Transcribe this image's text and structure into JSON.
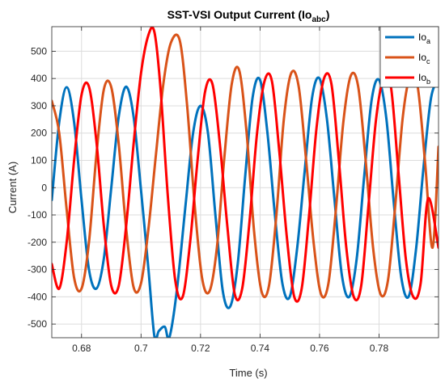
{
  "chart_data": {
    "type": "line",
    "title": {
      "main": "SST-VSI Output Current (Io",
      "sub": "abc",
      "close": ")"
    },
    "xlabel": "Time (s)",
    "ylabel": "Current (A)",
    "xlim": [
      0.67,
      0.8
    ],
    "ylim": [
      -550,
      590
    ],
    "xticks": [
      0.68,
      0.7,
      0.72,
      0.74,
      0.76,
      0.78
    ],
    "xtick_labels": [
      "0.68",
      "0.7",
      "0.72",
      "0.74",
      "0.76",
      "0.78"
    ],
    "yticks": [
      -500,
      -400,
      -300,
      -200,
      -100,
      0,
      100,
      200,
      300,
      400,
      500
    ],
    "ytick_labels": [
      "-500",
      "-400",
      "-300",
      "-200",
      "-100",
      "0",
      "100",
      "200",
      "300",
      "400",
      "500"
    ],
    "grid": true,
    "legend_position": "top-right",
    "series": [
      {
        "name": "Io",
        "sub": "a",
        "color": "#0072BD",
        "x": [
          0.67,
          0.6725,
          0.675,
          0.6775,
          0.68,
          0.6825,
          0.685,
          0.6875,
          0.69,
          0.6925,
          0.695,
          0.6975,
          0.7,
          0.7025,
          0.7045,
          0.706,
          0.708,
          0.7095,
          0.712,
          0.715,
          0.7175,
          0.72,
          0.7225,
          0.725,
          0.7275,
          0.73,
          0.7325,
          0.735,
          0.7375,
          0.74,
          0.7425,
          0.745,
          0.7475,
          0.75,
          0.7525,
          0.755,
          0.7575,
          0.76,
          0.7625,
          0.765,
          0.7675,
          0.77,
          0.7725,
          0.775,
          0.7775,
          0.78,
          0.7825,
          0.785,
          0.7875,
          0.79,
          0.7925,
          0.795,
          0.7975,
          0.8
        ],
        "y": [
          -45,
          240,
          368,
          240,
          -45,
          -300,
          -370,
          -260,
          0,
          260,
          370,
          260,
          -10,
          -300,
          -545,
          -525,
          -510,
          -550,
          -380,
          -60,
          200,
          300,
          200,
          -100,
          -380,
          -435,
          -280,
          40,
          330,
          395,
          200,
          -100,
          -350,
          -400,
          -220,
          60,
          330,
          400,
          250,
          -40,
          -320,
          -400,
          -260,
          40,
          320,
          395,
          250,
          -60,
          -330,
          -398,
          -220,
          80,
          330,
          395
        ]
      },
      {
        "name": "Io",
        "sub": "c",
        "color": "#D95319",
        "x": [
          0.67,
          0.6725,
          0.675,
          0.6775,
          0.68,
          0.6825,
          0.685,
          0.6875,
          0.69,
          0.6925,
          0.695,
          0.6975,
          0.7,
          0.7025,
          0.705,
          0.7075,
          0.71,
          0.713,
          0.7155,
          0.718,
          0.7205,
          0.723,
          0.7255,
          0.728,
          0.7305,
          0.733,
          0.7355,
          0.738,
          0.7405,
          0.743,
          0.7455,
          0.748,
          0.7505,
          0.753,
          0.7555,
          0.758,
          0.7605,
          0.763,
          0.7655,
          0.768,
          0.7705,
          0.773,
          0.7755,
          0.778,
          0.7805,
          0.783,
          0.7855,
          0.788,
          0.7905,
          0.793,
          0.7955,
          0.798,
          0.8
        ],
        "y": [
          318,
          200,
          -80,
          -330,
          -370,
          -200,
          120,
          360,
          368,
          160,
          -150,
          -365,
          -350,
          -150,
          120,
          380,
          530,
          540,
          300,
          -60,
          -330,
          -380,
          -220,
          110,
          380,
          430,
          200,
          -160,
          -380,
          -360,
          -100,
          250,
          420,
          370,
          100,
          -200,
          -390,
          -350,
          -80,
          240,
          410,
          370,
          100,
          -220,
          -390,
          -340,
          -60,
          260,
          410,
          370,
          90,
          -220,
          150
        ]
      },
      {
        "name": "Io",
        "sub": "b",
        "color": "#FF0000",
        "x": [
          0.67,
          0.6725,
          0.675,
          0.6775,
          0.68,
          0.6825,
          0.685,
          0.6875,
          0.69,
          0.6925,
          0.695,
          0.6975,
          0.7,
          0.7025,
          0.7045,
          0.7065,
          0.709,
          0.7115,
          0.714,
          0.7165,
          0.719,
          0.7215,
          0.724,
          0.7265,
          0.729,
          0.7315,
          0.734,
          0.7365,
          0.739,
          0.7415,
          0.744,
          0.7465,
          0.749,
          0.7515,
          0.754,
          0.7565,
          0.759,
          0.7615,
          0.764,
          0.7665,
          0.769,
          0.7715,
          0.774,
          0.7765,
          0.779,
          0.7815,
          0.784,
          0.7865,
          0.789,
          0.7915,
          0.794,
          0.7965,
          0.8
        ],
        "y": [
          -280,
          -370,
          -200,
          100,
          340,
          370,
          170,
          -140,
          -360,
          -360,
          -140,
          160,
          420,
          560,
          570,
          370,
          -30,
          -340,
          -400,
          -200,
          100,
          350,
          380,
          160,
          -140,
          -390,
          -370,
          -120,
          200,
          390,
          390,
          130,
          -180,
          -400,
          -370,
          -100,
          220,
          400,
          380,
          100,
          -220,
          -400,
          -360,
          -60,
          250,
          400,
          370,
          60,
          -260,
          -400,
          -350,
          -40,
          -220
        ]
      }
    ]
  }
}
